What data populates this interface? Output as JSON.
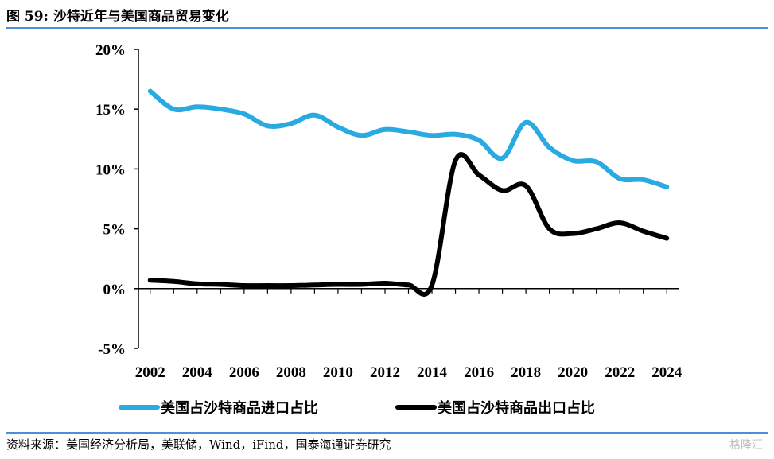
{
  "header": {
    "title": "图 59:  沙特近年与美国商品贸易变化"
  },
  "footer": {
    "source": "资料来源：美国经济分析局，美联储，Wind，iFind，国泰海通证券研究",
    "watermark": "格隆汇"
  },
  "colors": {
    "imports": "#29aae1",
    "exports": "#000000",
    "rule": "#4a90d9"
  },
  "chart_data": {
    "type": "line",
    "title": "沙特近年与美国商品贸易变化",
    "x_tick_labels": [
      "2002",
      "2004",
      "2006",
      "2008",
      "2010",
      "2012",
      "2014",
      "2016",
      "2018",
      "2020",
      "2022",
      "2024"
    ],
    "y_tick_labels": [
      "20%",
      "15%",
      "10%",
      "5%",
      "0%",
      "-5%"
    ],
    "ylim": [
      -5,
      20
    ],
    "xlim": [
      2001.5,
      2024.5
    ],
    "grid": false,
    "legend_position": "bottom",
    "series": [
      {
        "name": "美国占沙特商品进口占比",
        "color": "#29aae1",
        "x": [
          2002,
          2003,
          2004,
          2005,
          2006,
          2007,
          2008,
          2009,
          2010,
          2011,
          2012,
          2013,
          2014,
          2015,
          2016,
          2017,
          2018,
          2019,
          2020,
          2021,
          2022,
          2023,
          2024
        ],
        "values": [
          16.5,
          15.0,
          15.2,
          15.0,
          14.6,
          13.6,
          13.8,
          14.5,
          13.5,
          12.8,
          13.3,
          13.1,
          12.8,
          12.9,
          12.4,
          10.9,
          13.9,
          11.8,
          10.7,
          10.6,
          9.2,
          9.1,
          8.5
        ]
      },
      {
        "name": "美国占沙特商品出口占比",
        "color": "#000000",
        "x": [
          2002,
          2003,
          2004,
          2005,
          2006,
          2007,
          2008,
          2009,
          2010,
          2011,
          2012,
          2013,
          2014,
          2015,
          2016,
          2017,
          2018,
          2019,
          2020,
          2021,
          2022,
          2023,
          2024
        ],
        "values": [
          0.7,
          0.6,
          0.4,
          0.35,
          0.25,
          0.25,
          0.25,
          0.3,
          0.35,
          0.35,
          0.45,
          0.3,
          0.3,
          10.7,
          9.5,
          8.2,
          8.6,
          5.0,
          4.6,
          5.0,
          5.5,
          4.8,
          4.2
        ]
      }
    ]
  }
}
